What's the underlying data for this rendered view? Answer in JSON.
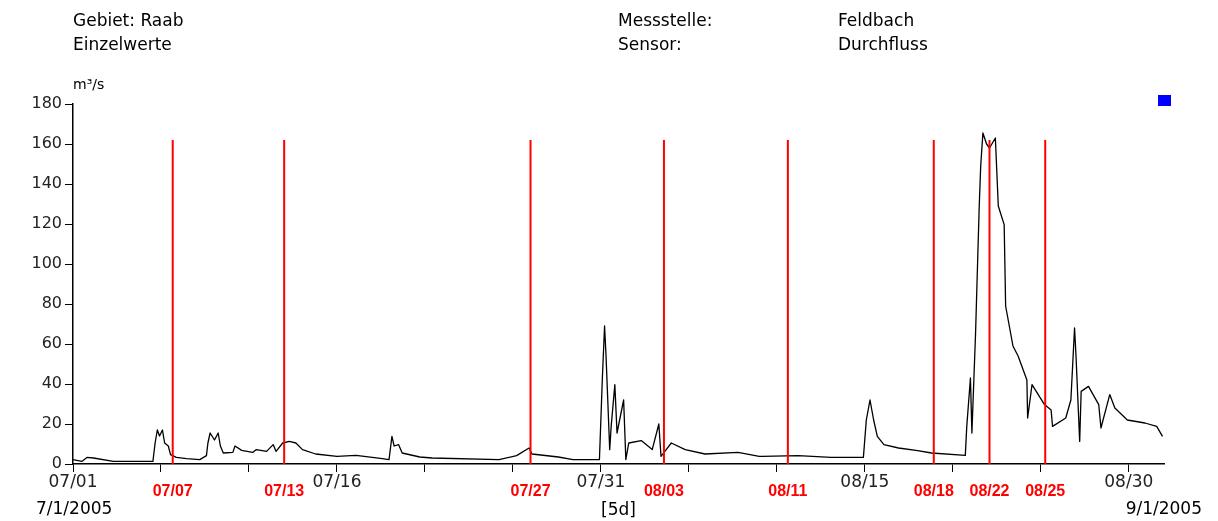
{
  "chart_data": {
    "type": "line",
    "title": "Gebiet: Raab",
    "subtitle": "Einzelwerte",
    "ylabel": "m³/s",
    "xlabel": "[5d]",
    "annotations": [
      "Messstelle:",
      "Feldbach",
      "Sensor:",
      "Durchfluss",
      "7/1/2005",
      "9/1/2005"
    ],
    "x": [
      "2005-07-01T00:00",
      "2005-07-01T12:00",
      "2005-07-01T19:00",
      "2005-07-02T04:00",
      "2005-07-03T07:00",
      "2005-07-05T13:00",
      "2005-07-05T16:00",
      "2005-07-05T19:00",
      "2005-07-05T22:00",
      "2005-07-06T02:00",
      "2005-07-06T05:00",
      "2005-07-06T10:00",
      "2005-07-06T13:00",
      "2005-07-06T21:00",
      "2005-07-07T11:00",
      "2005-07-08T05:00",
      "2005-07-08T14:00",
      "2005-07-08T16:00",
      "2005-07-08T19:00",
      "2005-07-09T01:00",
      "2005-07-09T06:00",
      "2005-07-09T09:00",
      "2005-07-09T13:00",
      "2005-07-10T02:00",
      "2005-07-10T05:00",
      "2005-07-10T14:00",
      "2005-07-11T05:00",
      "2005-07-11T10:00",
      "2005-07-12T00:00",
      "2005-07-12T09:00",
      "2005-07-12T13:00",
      "2005-07-12T22:00",
      "2005-07-13T07:00",
      "2005-07-13T16:00",
      "2005-07-14T01:00",
      "2005-07-14T19:00",
      "2005-07-16T00:00",
      "2005-07-17T02:00",
      "2005-07-18T14:00",
      "2005-07-18T23:00",
      "2005-07-19T03:00",
      "2005-07-19T06:00",
      "2005-07-19T12:00",
      "2005-07-19T17:00",
      "2005-07-20T17:00",
      "2005-07-21T10:00",
      "2005-07-25T05:00",
      "2005-07-26T05:00",
      "2005-07-26T22:00",
      "2005-07-27T02:00",
      "2005-07-28T14:00",
      "2005-07-29T10:00",
      "2005-07-30T22:00",
      "2005-07-31T02:00",
      "2005-07-31T05:00",
      "2005-07-31T07:00",
      "2005-07-31T12:00",
      "2005-07-31T14:00",
      "2005-07-31T19:00",
      "2005-07-31T22:00",
      "2005-08-01T07:00",
      "2005-08-01T10:00",
      "2005-08-01T14:00",
      "2005-08-02T07:00",
      "2005-08-02T22:00",
      "2005-08-03T07:00",
      "2005-08-03T10:00",
      "2005-08-04T00:00",
      "2005-08-04T19:00",
      "2005-08-05T22:00",
      "2005-08-07T19:00",
      "2005-08-09T00:00",
      "2005-08-11T05:00",
      "2005-08-13T02:00",
      "2005-08-14T22:00",
      "2005-08-15T02:00",
      "2005-08-15T07:00",
      "2005-08-15T12:00",
      "2005-08-15T17:00",
      "2005-08-16T02:00",
      "2005-08-16T22:00",
      "2005-08-18T00:00",
      "2005-08-18T19:00",
      "2005-08-20T17:00",
      "2005-08-20T19:00",
      "2005-08-21T00:00",
      "2005-08-21T02:00",
      "2005-08-21T07:00",
      "2005-08-21T12:00",
      "2005-08-21T14:00",
      "2005-08-21T17:00",
      "2005-08-21T22:00",
      "2005-08-22T02:00",
      "2005-08-22T10:00",
      "2005-08-22T14:00",
      "2005-08-22T22:00",
      "2005-08-23T00:00",
      "2005-08-23T10:00",
      "2005-08-23T17:00",
      "2005-08-24T05:00",
      "2005-08-24T06:00",
      "2005-08-24T12:00",
      "2005-08-25T05:00",
      "2005-08-25T14:00",
      "2005-08-25T16:00",
      "2005-08-26T10:00",
      "2005-08-26T17:00",
      "2005-08-26T22:00",
      "2005-08-27T00:00",
      "2005-08-27T05:00",
      "2005-08-27T07:00",
      "2005-08-27T17:00",
      "2005-08-28T07:00",
      "2005-08-28T10:00",
      "2005-08-28T22:00",
      "2005-08-29T05:00",
      "2005-08-29T22:00",
      "2005-08-30T22:00",
      "2005-08-31T14:00",
      "2005-08-31T22:00"
    ],
    "series": [
      {
        "color": "#000000",
        "values": [
          2.2,
          1.3,
          3.3,
          3,
          1.3,
          1.3,
          10.5,
          17,
          14,
          17,
          10.5,
          9,
          4.7,
          3.3,
          2.7,
          2.2,
          4.2,
          10.5,
          15.5,
          12,
          15.5,
          9,
          5.5,
          5.8,
          9,
          6.8,
          5.8,
          7.2,
          6.3,
          9.7,
          6.3,
          10.5,
          11.3,
          10.5,
          7.2,
          5,
          3.8,
          4.3,
          2.7,
          2.2,
          13.8,
          9,
          9.7,
          5.5,
          3.5,
          3,
          2.2,
          4.2,
          8,
          5,
          3.5,
          2.2,
          2.2,
          43,
          69,
          54,
          7.2,
          18.8,
          39.7,
          15.5,
          32,
          2.2,
          10.5,
          11.7,
          7.2,
          20,
          3.8,
          10.5,
          7.2,
          5,
          5.8,
          3.8,
          4.2,
          3.3,
          3.3,
          22,
          32,
          22,
          13.8,
          9.7,
          8,
          6.7,
          5.5,
          4.3,
          18.8,
          43,
          15.5,
          65.5,
          129,
          149,
          165.5,
          160,
          158,
          163,
          129,
          119.7,
          79,
          59,
          54,
          42,
          23,
          39.7,
          29.7,
          27,
          18.8,
          23,
          32,
          68,
          54,
          11.3,
          36.3,
          38.8,
          29.7,
          18,
          34.7,
          28,
          22,
          20.5,
          18.8,
          13.8
        ]
      }
    ],
    "xlim": [
      "2005-07-01",
      "2005-09-01"
    ],
    "xticks": [
      {
        "value": "2005-07-01",
        "label": "07/01"
      },
      {
        "value": "2005-07-06",
        "label": null
      },
      {
        "value": "2005-07-11",
        "label": null
      },
      {
        "value": "2005-07-16",
        "label": "07/16"
      },
      {
        "value": "2005-07-21",
        "label": null
      },
      {
        "value": "2005-07-26",
        "label": null
      },
      {
        "value": "2005-07-31",
        "label": "07/31"
      },
      {
        "value": "2005-08-05",
        "label": null
      },
      {
        "value": "2005-08-10",
        "label": null
      },
      {
        "value": "2005-08-15",
        "label": "08/15"
      },
      {
        "value": "2005-08-20",
        "label": null
      },
      {
        "value": "2005-08-25",
        "label": null
      },
      {
        "value": "2005-08-30",
        "label": "08/30"
      }
    ],
    "ylim": [
      0,
      180
    ],
    "yticks": [
      0,
      20,
      40,
      60,
      80,
      100,
      120,
      140,
      160,
      180
    ],
    "ref_lines": [
      {
        "axis": "x",
        "value": "2005-07-06T16:00",
        "label": "07/07",
        "color": "#ff0000"
      },
      {
        "axis": "x",
        "value": "2005-07-13T00:00",
        "label": "07/13",
        "color": "#ff0000"
      },
      {
        "axis": "x",
        "value": "2005-07-27T00:00",
        "label": "07/27",
        "color": "#ff0000"
      },
      {
        "axis": "x",
        "value": "2005-08-03T14:00",
        "label": "08/03",
        "color": "#ff0000"
      },
      {
        "axis": "x",
        "value": "2005-08-10T15:00",
        "label": "08/11",
        "color": "#ff0000"
      },
      {
        "axis": "x",
        "value": "2005-08-18T22:00",
        "label": "08/18",
        "color": "#ff0000"
      },
      {
        "axis": "x",
        "value": "2005-08-22T02:00",
        "label": "08/22",
        "color": "#ff0000"
      },
      {
        "axis": "x",
        "value": "2005-08-25T06:00",
        "label": "08/25",
        "color": "#ff0000"
      }
    ],
    "grid": false,
    "legend": false,
    "marker": "none",
    "line_style": "solid"
  }
}
